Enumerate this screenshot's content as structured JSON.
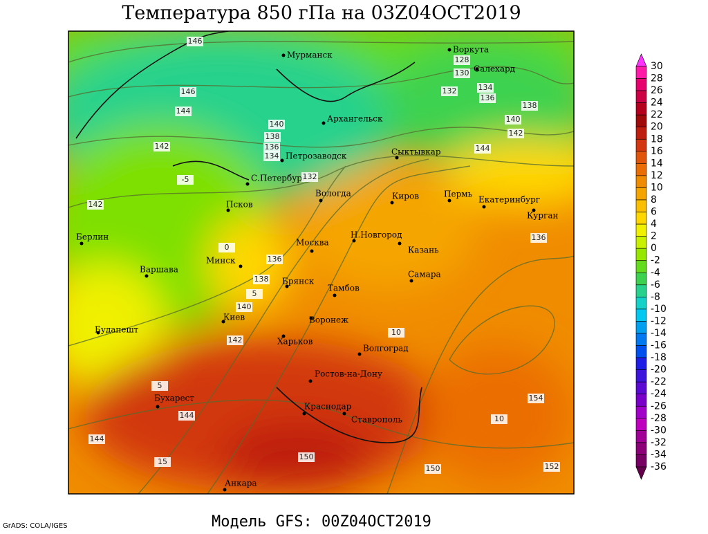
{
  "title": "Температура 850 гПа на 03Z04OCT2019",
  "footer": "Модель GFS: 00Z04OCT2019",
  "credit": "GrADS: COLA/IGES",
  "cities": [
    "Мурманск",
    "Воркута",
    "Салехард",
    "Архангельск",
    "Петрозаводск",
    "Сыктывкар",
    "С.Петербург",
    "Вологда",
    "Киров",
    "Пермь",
    "Екатеринбург",
    "Курган",
    "Псков",
    "Берлин",
    "Н.Новгород",
    "Москва",
    "Казань",
    "Минск",
    "Варшава",
    "Самара",
    "Брянск",
    "Тамбов",
    "Киев",
    "Воронеж",
    "Будапешт",
    "Харьков",
    "Волгоград",
    "Ростов-на-Дону",
    "Бухарест",
    "Краснодар",
    "Ставрополь",
    "Анкара"
  ],
  "contour_labels": [
    "146",
    "146",
    "144",
    "142",
    "140",
    "138",
    "136",
    "134",
    "132",
    "142",
    "136",
    "138",
    "140",
    "142",
    "144",
    "144",
    "150",
    "150",
    "152",
    "154",
    "136",
    "140",
    "142",
    "138",
    "134",
    "136",
    "132",
    "130",
    "128",
    "144",
    "0",
    "5",
    "10",
    "15",
    "10",
    "-5",
    "5"
  ],
  "colorbar": {
    "levels": [
      30,
      28,
      26,
      24,
      22,
      20,
      18,
      16,
      14,
      12,
      10,
      8,
      6,
      4,
      2,
      0,
      -2,
      -4,
      -6,
      -8,
      -10,
      -12,
      -14,
      -16,
      -18,
      -20,
      -22,
      -24,
      -26,
      -28,
      -30,
      -32,
      -34,
      -36
    ],
    "colors": [
      "#ff33ff",
      "#ff1aa8",
      "#e6006e",
      "#cc0044",
      "#b4001e",
      "#a00a0a",
      "#be1e0f",
      "#d2370f",
      "#e1550a",
      "#eb6e05",
      "#f08c00",
      "#f5a500",
      "#fac000",
      "#ffd700",
      "#f0f000",
      "#c8f000",
      "#96e600",
      "#64dc1e",
      "#3cd250",
      "#28d28c",
      "#14d2c8",
      "#00c8f0",
      "#00a0f0",
      "#0078f0",
      "#0050f0",
      "#1e1ee6",
      "#3c14dc",
      "#5a0ad2",
      "#7800c8",
      "#a000c8",
      "#be00be",
      "#a00096",
      "#8c0078",
      "#780064",
      "#64004b"
    ]
  }
}
